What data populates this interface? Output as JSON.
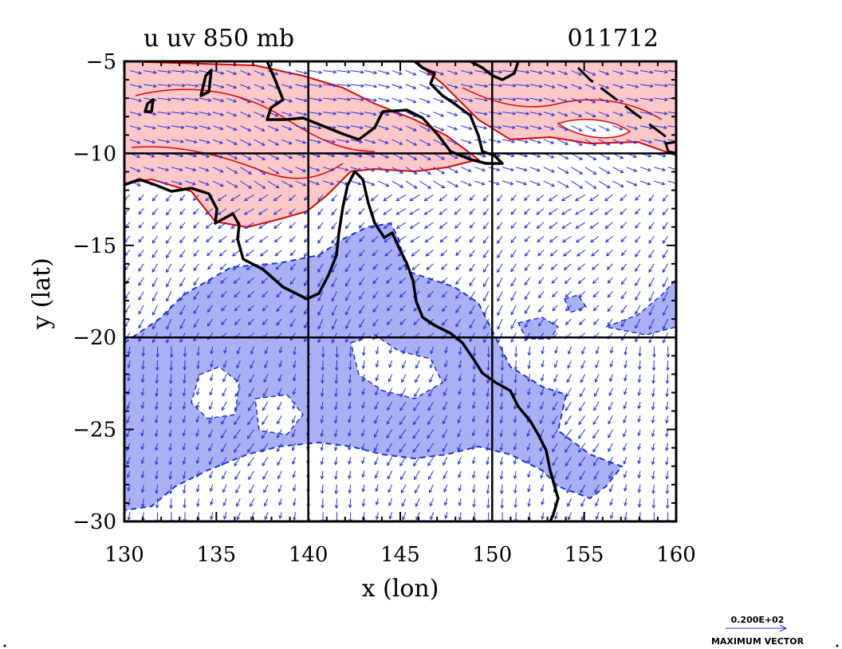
{
  "title": {
    "left": "u  uv 850  mb",
    "right": "011712"
  },
  "chart_data": {
    "type": "map",
    "field": "u  uv 850  mb",
    "id": "011712",
    "xlabel": "x (lon)",
    "ylabel": "y (lat)",
    "xlim": [
      130,
      160
    ],
    "ylim": [
      -30,
      -5
    ],
    "xticks": [
      "130",
      "135",
      "140",
      "145",
      "150",
      "155",
      "160"
    ],
    "yticks": [
      "−5",
      "−10",
      "−15",
      "−20",
      "−25",
      "−30"
    ],
    "grid_lon": [
      140,
      150
    ],
    "grid_lat": [
      -10,
      -20
    ],
    "colors": {
      "positive": "#ffc8c8",
      "positive_line": "#e00000",
      "negative": "#aab0f4",
      "negative_line": "#1a2fd6",
      "vector": "#2233dd",
      "coast": "#000000"
    }
  },
  "legend": {
    "value": "0.200E+02",
    "label": "MAXIMUM VECTOR"
  }
}
